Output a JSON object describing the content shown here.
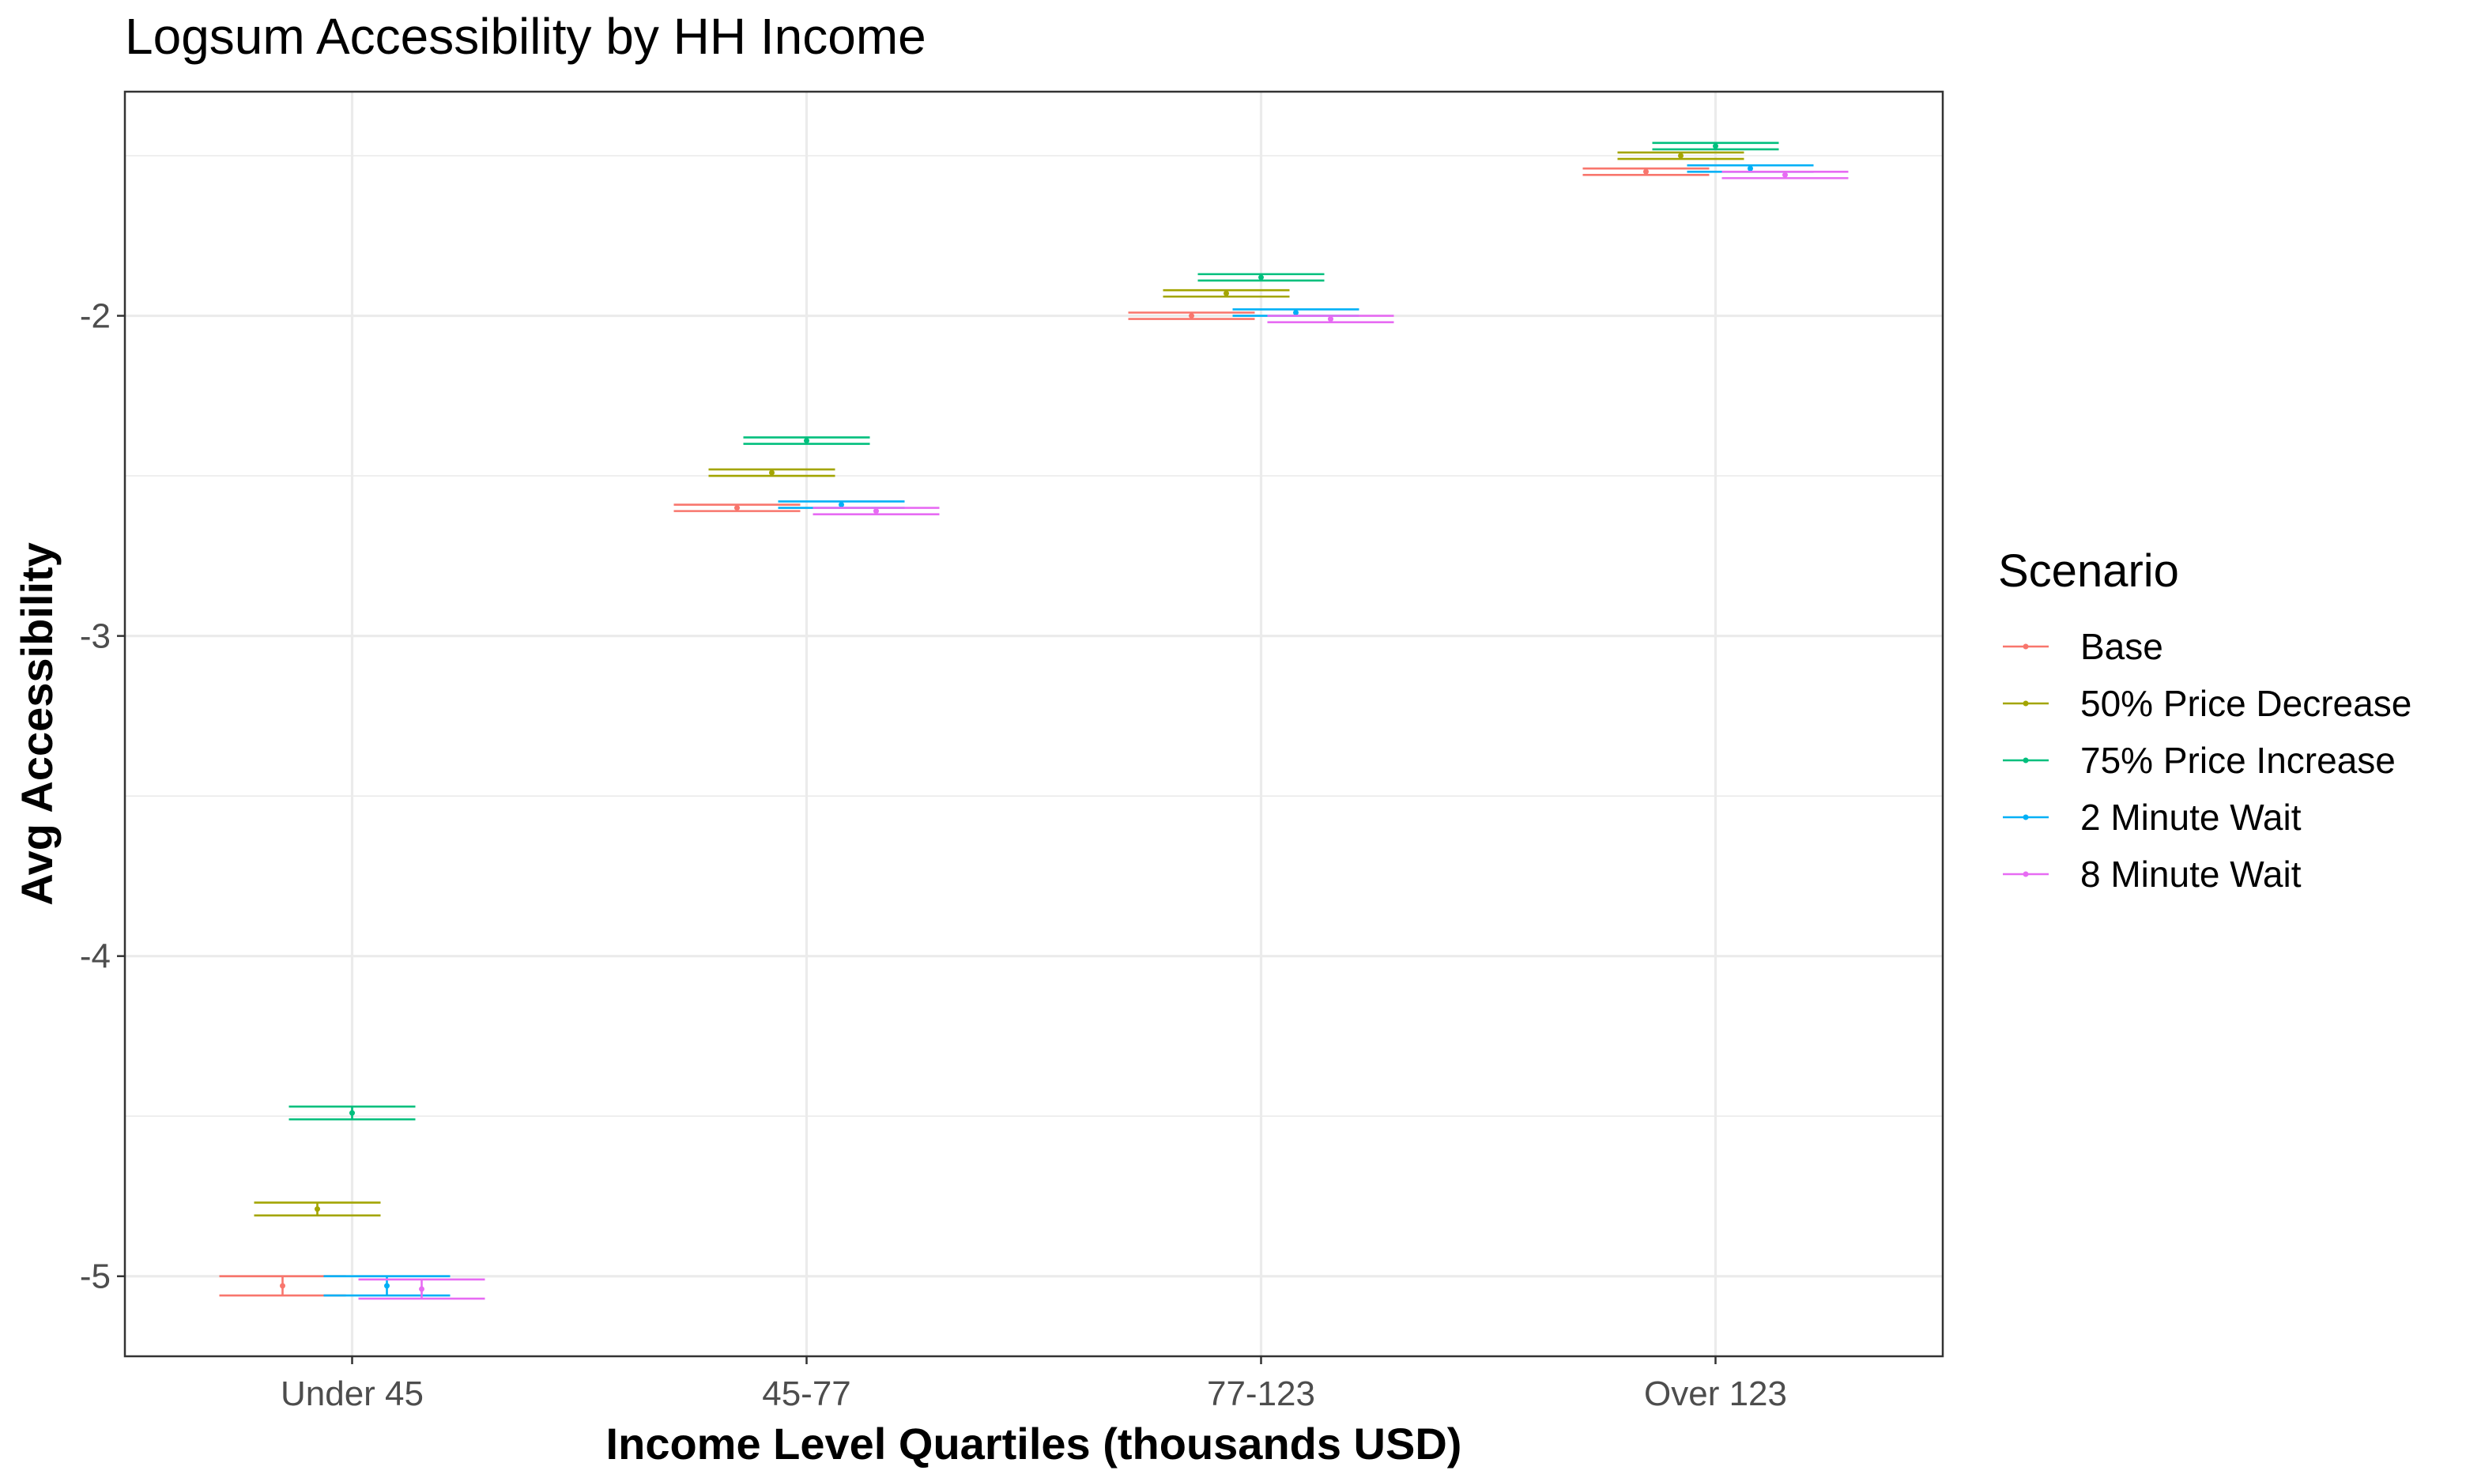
{
  "chart_data": {
    "type": "errorbar",
    "title": "Logsum Accessibility by HH Income",
    "xlabel": "Income Level Quartiles (thousands USD)",
    "ylabel": "Avg Accessibility",
    "categories": [
      "Under 45",
      "45-77",
      "77-123",
      "Over 123"
    ],
    "ylim": [
      -5.25,
      -1.3
    ],
    "yticks": [
      -5,
      -4,
      -3,
      -2
    ],
    "ytick_labels": [
      "-5",
      "-4",
      "-3",
      "-2"
    ],
    "grid": true,
    "legend": {
      "title": "Scenario",
      "position": "right"
    },
    "series": [
      {
        "name": "Base",
        "color": "#F8766D",
        "mean": [
          -5.03,
          -2.6,
          -2.0,
          -1.55
        ],
        "lower": [
          -5.06,
          -2.61,
          -2.01,
          -1.56
        ],
        "upper": [
          -5.0,
          -2.59,
          -1.99,
          -1.54
        ]
      },
      {
        "name": "50% Price Decrease",
        "color": "#A3A500",
        "mean": [
          -4.79,
          -2.49,
          -1.93,
          -1.5
        ],
        "lower": [
          -4.81,
          -2.5,
          -1.94,
          -1.51
        ],
        "upper": [
          -4.77,
          -2.48,
          -1.92,
          -1.49
        ]
      },
      {
        "name": "75% Price Increase",
        "color": "#00BF7D",
        "mean": [
          -4.49,
          -2.39,
          -1.88,
          -1.47
        ],
        "lower": [
          -4.51,
          -2.4,
          -1.89,
          -1.48
        ],
        "upper": [
          -4.47,
          -2.38,
          -1.87,
          -1.46
        ]
      },
      {
        "name": "2 Minute Wait",
        "color": "#00B0F6",
        "mean": [
          -5.03,
          -2.59,
          -1.99,
          -1.54
        ],
        "lower": [
          -5.06,
          -2.6,
          -2.0,
          -1.55
        ],
        "upper": [
          -5.0,
          -2.58,
          -1.98,
          -1.53
        ]
      },
      {
        "name": "8 Minute Wait",
        "color": "#E76BF3",
        "mean": [
          -5.04,
          -2.61,
          -2.01,
          -1.56
        ],
        "lower": [
          -5.07,
          -2.62,
          -2.02,
          -1.57
        ],
        "upper": [
          -5.01,
          -2.6,
          -2.0,
          -1.55
        ]
      }
    ]
  }
}
